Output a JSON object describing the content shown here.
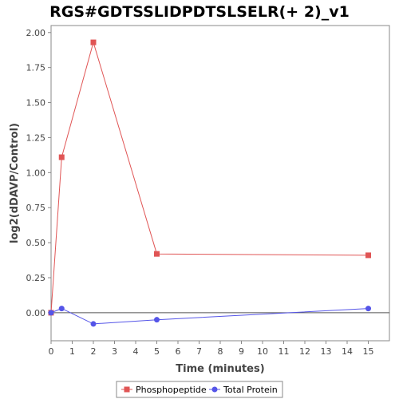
{
  "chart_data": {
    "type": "line",
    "title": "RGS#GDTSSLIDPDTSLSELR(+ 2)_v1",
    "xlabel": "Time (minutes)",
    "ylabel": "log2(dDAVP/Control)",
    "xlim": [
      0,
      16
    ],
    "ylim": [
      -0.2,
      2.05
    ],
    "x_ticks": [
      0,
      1,
      2,
      3,
      4,
      5,
      6,
      7,
      8,
      9,
      10,
      11,
      12,
      13,
      14,
      15
    ],
    "y_ticks": [
      0.0,
      0.25,
      0.5,
      0.75,
      1.0,
      1.25,
      1.5,
      1.75,
      2.0
    ],
    "y_tick_labels": [
      "0.00",
      "0.25",
      "0.50",
      "0.75",
      "1.00",
      "1.25",
      "1.50",
      "1.75",
      "2.00"
    ],
    "grid": false,
    "zero_line": true,
    "legend_position": "bottom",
    "series": [
      {
        "name": "Phosphopeptide",
        "color": "#e05555",
        "marker": "square",
        "x": [
          0,
          0.5,
          2,
          5,
          15
        ],
        "values": [
          0.0,
          1.11,
          1.93,
          0.42,
          0.41
        ]
      },
      {
        "name": "Total Protein",
        "color": "#5555e8",
        "marker": "circle",
        "x": [
          0,
          0.5,
          2,
          5,
          15
        ],
        "values": [
          0.0,
          0.03,
          -0.08,
          -0.05,
          0.03
        ]
      }
    ]
  }
}
